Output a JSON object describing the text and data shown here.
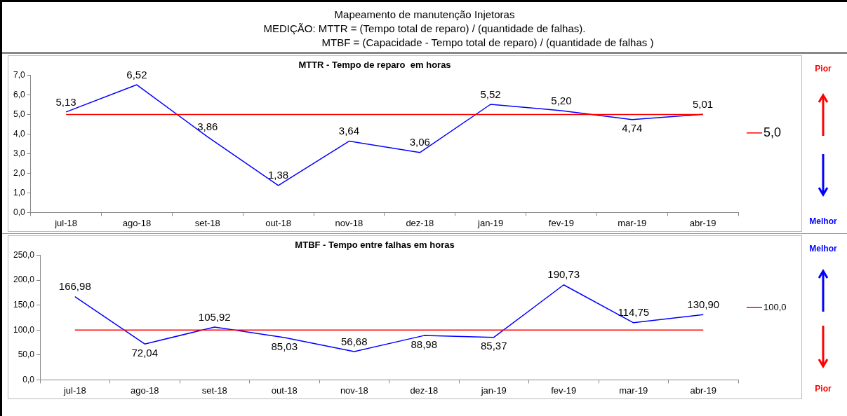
{
  "chart_data": [
    {
      "type": "other",
      "title": "Mapeamento de manutenção Injetoras",
      "annotations": [
        "MEDIÇÃO: MTTR = (Tempo total de reparo) / (quantidade de falhas).",
        "MTBF = (Capacidade - Tempo total de reparo) / (quantidade de falhas )"
      ]
    },
    {
      "type": "line",
      "title": "MTTR - Tempo de reparo  em horas",
      "categories": [
        "jul-18",
        "ago-18",
        "set-18",
        "out-18",
        "nov-18",
        "dez-18",
        "jan-19",
        "fev-19",
        "mar-19",
        "abr-19"
      ],
      "series": [
        {
          "color": "#0000ff",
          "values": [
            5.13,
            6.52,
            3.86,
            1.38,
            3.64,
            3.06,
            5.52,
            5.2,
            4.74,
            5.01
          ],
          "value_labels": [
            "5,13",
            "6,52",
            "3,86",
            "1,38",
            "3,64",
            "3,06",
            "5,52",
            "5,20",
            "4,74",
            "5,01"
          ]
        }
      ],
      "ylim": [
        0,
        7
      ],
      "yticks": [
        {
          "value": 0,
          "label": "0,0"
        },
        {
          "value": 1,
          "label": "1,0"
        },
        {
          "value": 2,
          "label": "2,0"
        },
        {
          "value": 3,
          "label": "3,0"
        },
        {
          "value": 4,
          "label": "4,0"
        },
        {
          "value": 5,
          "label": "5,0"
        },
        {
          "value": 6,
          "label": "6,0"
        },
        {
          "value": 7,
          "label": "7,0"
        }
      ],
      "ref_lines": [
        {
          "axis": "y",
          "value": 5,
          "label": "5,0",
          "color": "#ff0000"
        }
      ],
      "annotations": [
        "Pior",
        "Melhor"
      ],
      "grid": false,
      "legend": "right",
      "marker": "none",
      "line_style": "solid"
    },
    {
      "type": "line",
      "title": "MTBF - Tempo entre falhas em horas",
      "categories": [
        "jul-18",
        "ago-18",
        "set-18",
        "out-18",
        "nov-18",
        "dez-18",
        "jan-19",
        "fev-19",
        "mar-19",
        "abr-19"
      ],
      "series": [
        {
          "color": "#0000ff",
          "values": [
            166.98,
            72.04,
            105.92,
            85.03,
            56.68,
            88.98,
            85.37,
            190.73,
            114.75,
            130.9
          ],
          "value_labels": [
            "166,98",
            "72,04",
            "105,92",
            "85,03",
            "56,68",
            "88,98",
            "85,37",
            "190,73",
            "114,75",
            "130,90"
          ]
        }
      ],
      "ylim": [
        0,
        250
      ],
      "yticks": [
        {
          "value": 0,
          "label": "0,0"
        },
        {
          "value": 50,
          "label": "50,0"
        },
        {
          "value": 100,
          "label": "100,0"
        },
        {
          "value": 150,
          "label": "150,0"
        },
        {
          "value": 200,
          "label": "200,0"
        },
        {
          "value": 250,
          "label": "250,0"
        }
      ],
      "ref_lines": [
        {
          "axis": "y",
          "value": 100,
          "label": "100,0",
          "color": "#ff0000"
        }
      ],
      "annotations": [
        "Melhor",
        "Pior"
      ],
      "grid": false,
      "legend": "right",
      "marker": "none",
      "line_style": "solid"
    }
  ]
}
